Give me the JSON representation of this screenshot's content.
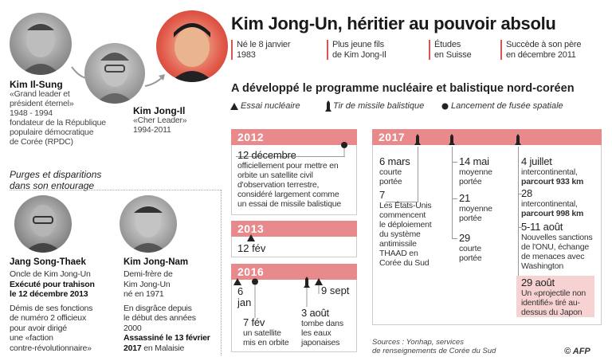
{
  "title": "Kim Jong-Un, héritier au pouvoir absolu",
  "facts": [
    [
      "Né le 8 janvier",
      "1983"
    ],
    [
      "Plus jeune fils",
      "de Kim Jong-Il"
    ],
    [
      "Études",
      "en Suisse"
    ],
    [
      "Succède à son père",
      "en décembre 2011"
    ]
  ],
  "lineage": {
    "il_sung": {
      "name": "Kim Il-Sung",
      "lines": [
        "«Grand leader et",
        "président éternel»",
        "1948 - 1994",
        "fondateur de la République",
        "populaire démocratique",
        "de Corée (RPDC)"
      ]
    },
    "jong_il": {
      "name": "Kim Jong-Il",
      "lines": [
        "«Cher Leader»",
        "1994-2011"
      ]
    }
  },
  "program_title": "A développé le programme nucléaire et balistique nord-coréen",
  "legend": {
    "nuclear": "Essai nucléaire",
    "missile": "Tir de missile balistique",
    "space": "Lancement de fusée spatiale"
  },
  "purges": {
    "heading": [
      "Purges et disparitions",
      "dans son entourage"
    ],
    "jang": {
      "name": "Jang Song-Thaek",
      "lines": [
        "Oncle de Kim Jong-Un"
      ],
      "bold1": [
        "Exécuté pour trahison",
        "le 12 décembre 2013"
      ],
      "lines2": [
        "Démis de ses fonctions",
        "de numéro 2 officieux",
        "pour avoir dirigé",
        "une «faction",
        "contre-révolutionnaire»"
      ]
    },
    "nam": {
      "name": "Kim Jong-Nam",
      "lines": [
        "Demi-frère de",
        "Kim Jong-Un"
      ],
      "born": "né en 1971",
      "lines2": [
        "En disgrâce depuis",
        "le début des années",
        "2000"
      ],
      "bold1": [
        "Assassiné le 13 février"
      ],
      "bold_tail": "2017",
      "tail": " en Malaisie"
    }
  },
  "y2012": {
    "label": "2012",
    "date": "12 décembre",
    "text": [
      "officiellement pour mettre en",
      "orbite un satellite civil",
      "d'observation terrestre,",
      "considéré largement comme",
      "un essai de missile balistique"
    ]
  },
  "y2013": {
    "label": "2013",
    "date": "12 fév"
  },
  "y2016": {
    "label": "2016",
    "e1": {
      "date": [
        "6",
        "jan"
      ]
    },
    "e2": {
      "date": "7 fév",
      "text": [
        "un satellite",
        "mis en orbite"
      ]
    },
    "e3": {
      "date": "3 août",
      "text": [
        "tombe dans",
        "les eaux",
        "japonaises"
      ]
    },
    "e4": {
      "date": "9 sept"
    }
  },
  "y2017": {
    "label": "2017",
    "col1": [
      {
        "date": "6 mars",
        "text": [
          "courte",
          "portée"
        ]
      },
      {
        "date": "7",
        "text": [
          "Les États-Unis",
          "commencent",
          "le déploiement",
          "du  système",
          "antimissile",
          "THAAD en",
          "Corée du Sud"
        ]
      }
    ],
    "col2": [
      {
        "date": "14 mai",
        "text": [
          "moyenne",
          "portée"
        ]
      },
      {
        "date": "21",
        "text": [
          "moyenne",
          "portée"
        ]
      },
      {
        "date": "29",
        "text": [
          "courte",
          "portée"
        ]
      }
    ],
    "col3": [
      {
        "date": "4 juillet",
        "text": [
          "intercontinental,"
        ],
        "bold": "parcourt 933 km"
      },
      {
        "date": "28",
        "text": [
          "intercontinental,"
        ],
        "bold": "parcourt 998 km"
      },
      {
        "date": "5-11 août",
        "text": [
          "Nouvelles sanctions",
          "de l'ONU, échange",
          "de menaces avec",
          "Washington"
        ]
      },
      {
        "date": "29 août",
        "text": [
          "Un «projectile non",
          "identifié» tiré au-",
          "dessus du Japon"
        ]
      }
    ]
  },
  "sources": [
    "Sources : Yonhap, services",
    "de renseignements de Corée du Sud"
  ],
  "credit": "© AFP",
  "colors": {
    "accent": "#e88a8c",
    "highlight": "#f6d2d3",
    "rule": "#d9534f"
  }
}
